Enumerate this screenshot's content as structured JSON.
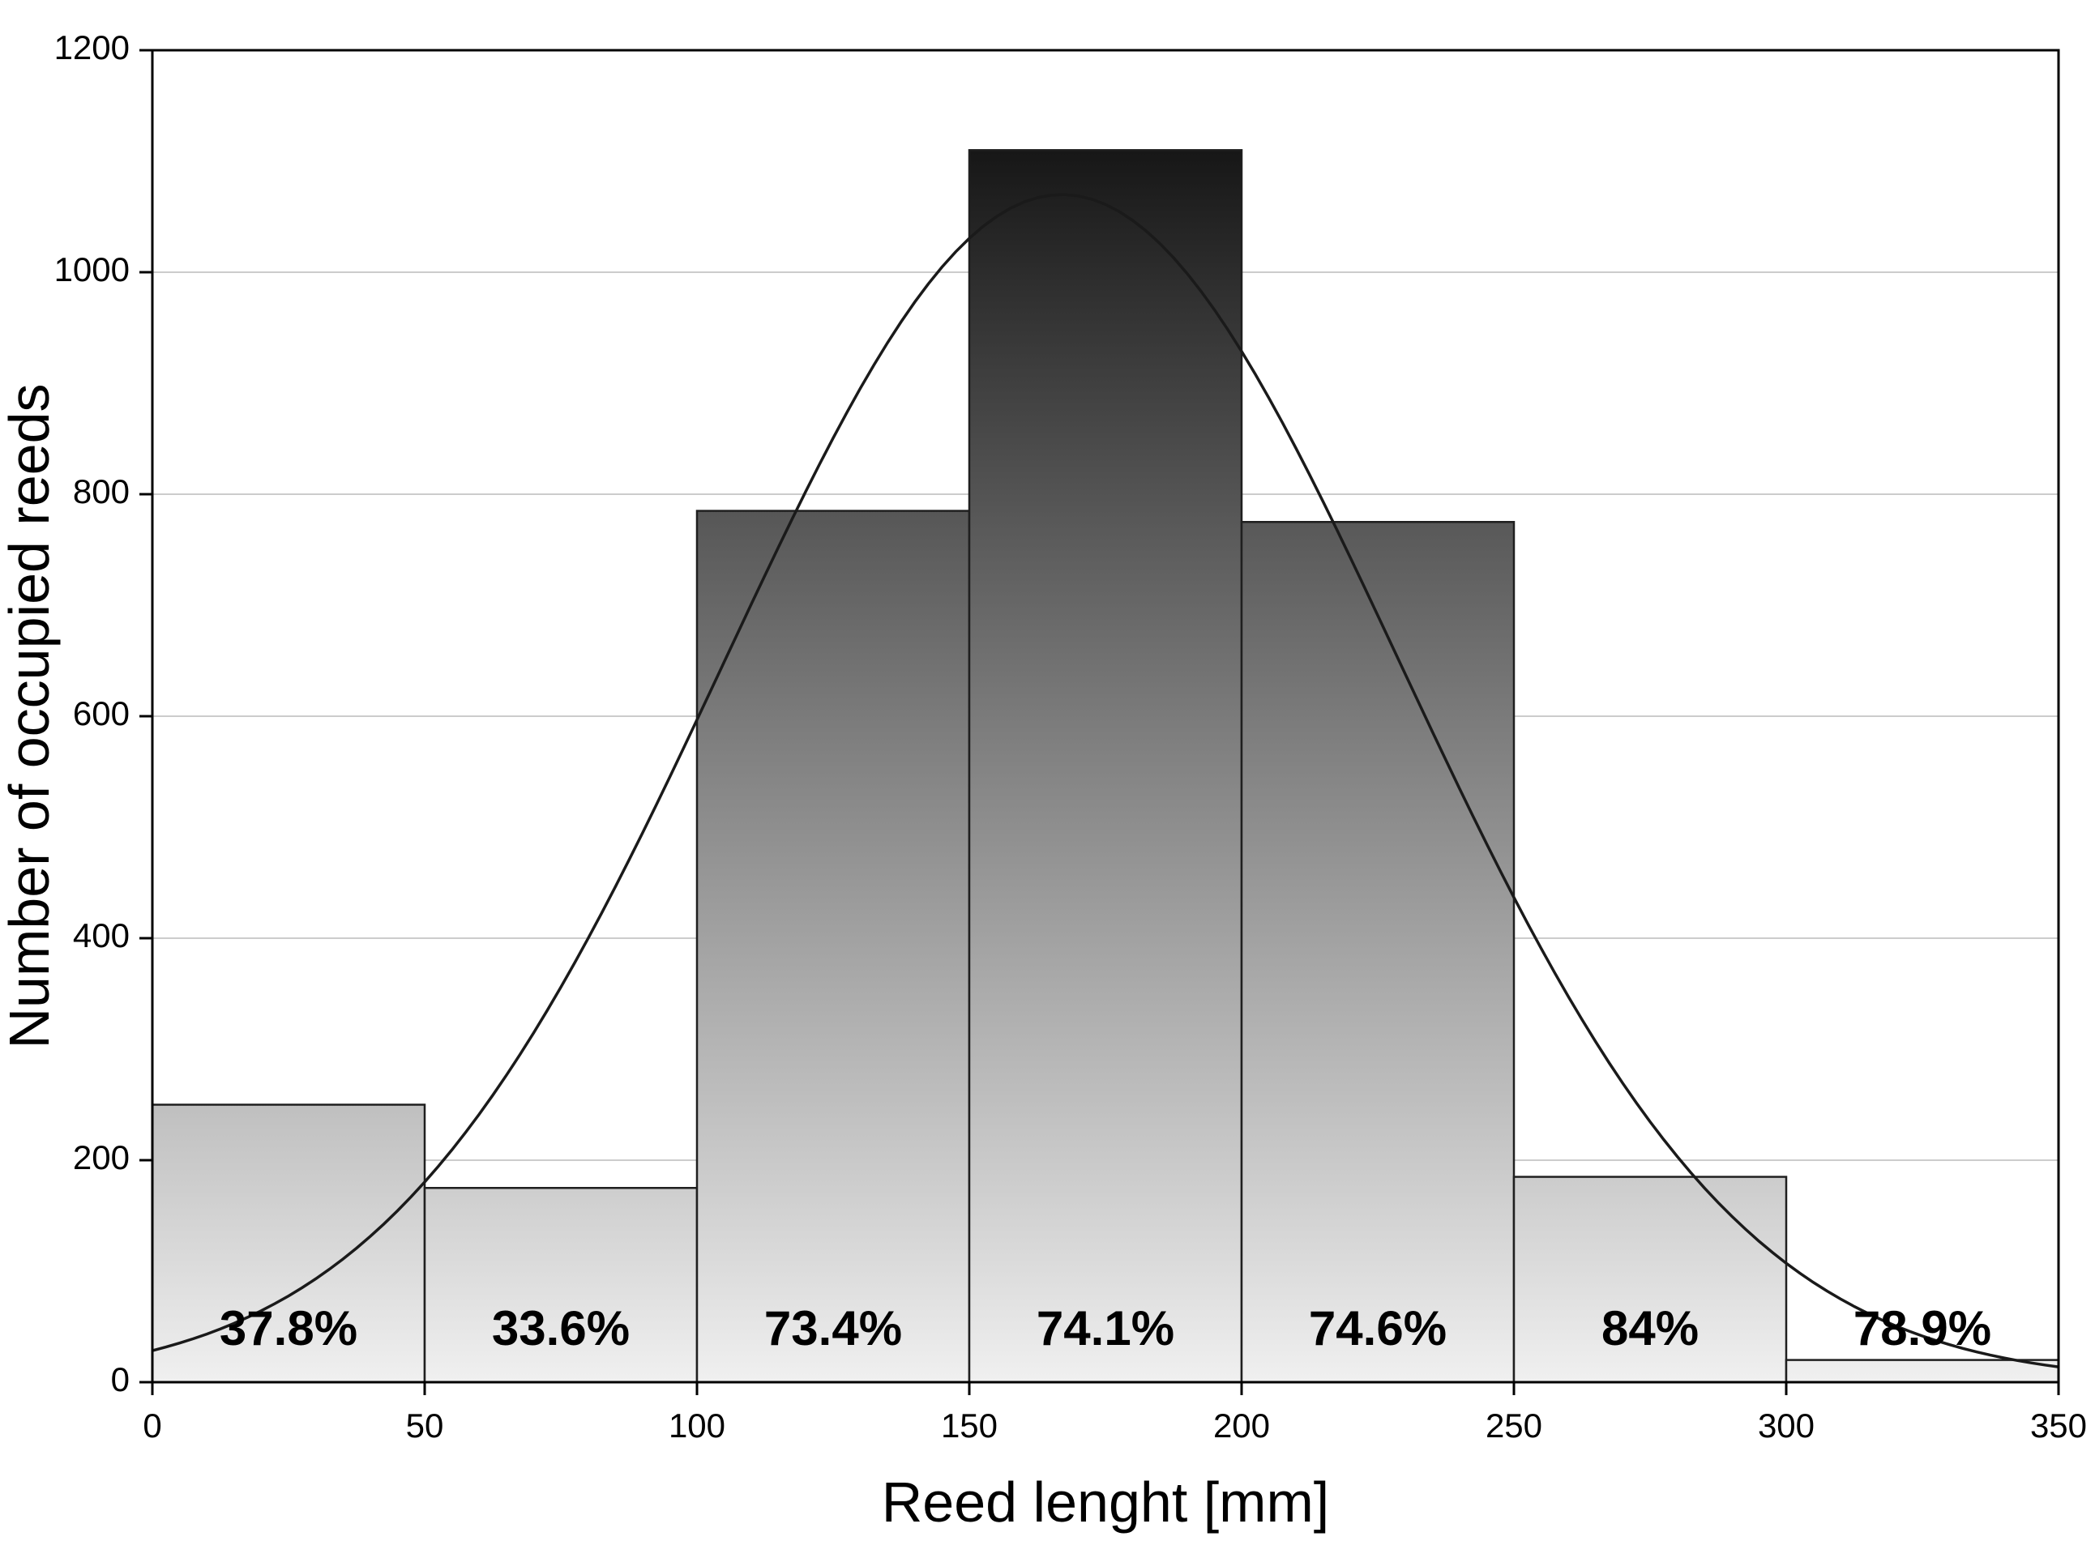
{
  "chart_data": {
    "type": "bar",
    "subtype": "histogram-with-fit-curve",
    "title": "",
    "xlabel": "Reed lenght [mm]",
    "ylabel": "Number of occupied reeds",
    "xlim": [
      0,
      350
    ],
    "ylim": [
      0,
      1200
    ],
    "x_ticks": [
      0,
      50,
      100,
      150,
      200,
      250,
      300,
      350
    ],
    "y_ticks": [
      0,
      200,
      400,
      600,
      800,
      1000,
      1200
    ],
    "bin_edges": [
      0,
      50,
      100,
      150,
      200,
      250,
      300,
      350
    ],
    "bin_counts": [
      250,
      175,
      785,
      1110,
      775,
      185,
      20
    ],
    "bar_labels": [
      "37.8%",
      "33.6%",
      "73.4%",
      "74.1%",
      "74.6%",
      "84%",
      "78.9%"
    ],
    "bar_label_y": 45,
    "curve": {
      "type": "gaussian",
      "amplitude": 1070,
      "mean": 167,
      "sigma": 62
    },
    "grid": "horizontal",
    "legend": "none",
    "colors": {
      "bar_gradient_top": "#050505",
      "bar_gradient_bottom": "#f0f0f0",
      "bar_stroke": "#1f1f1f",
      "curve_line": "#1a1a1a",
      "gridline": "#cccccc",
      "frame": "#000000",
      "text": "#000000",
      "background": "#ffffff"
    }
  }
}
